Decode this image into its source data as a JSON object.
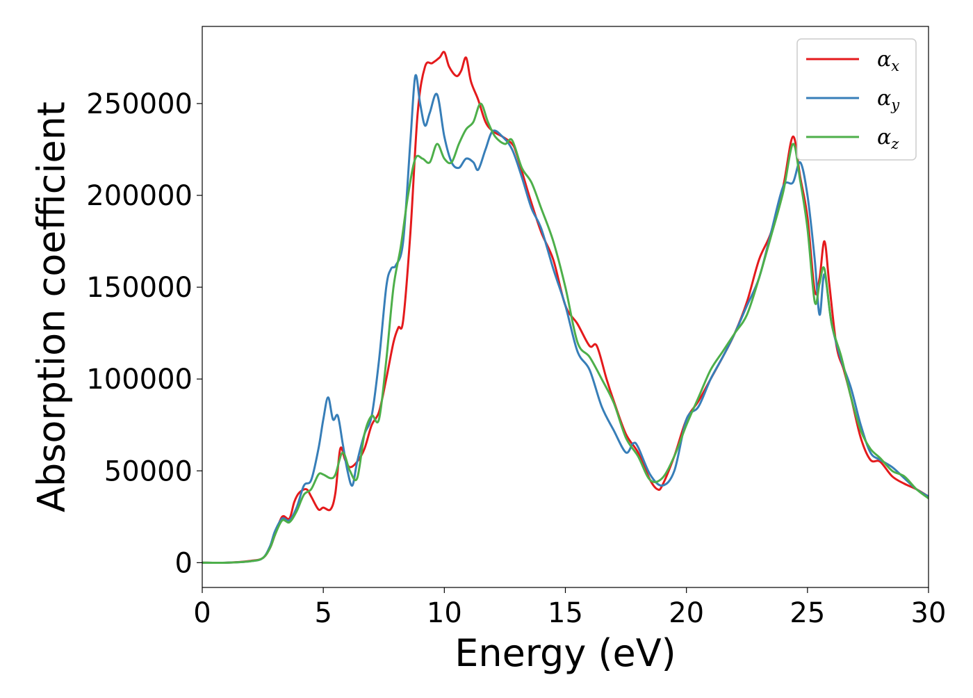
{
  "chart_data": {
    "type": "line",
    "title": "",
    "xlabel": "Energy (eV)",
    "ylabel": "Absorption coefficient",
    "xlim": [
      0,
      30
    ],
    "ylim": [
      -13500,
      292000
    ],
    "xticks": [
      0,
      5,
      10,
      15,
      20,
      25,
      30
    ],
    "yticks": [
      0,
      50000,
      100000,
      150000,
      200000,
      250000
    ],
    "grid": false,
    "legend_position": "top-right",
    "series": [
      {
        "name": "αx",
        "legend_base": "α",
        "legend_sub": "x",
        "color": "#e41a1c",
        "x": [
          0,
          1,
          2,
          2.5,
          2.8,
          3.0,
          3.3,
          3.6,
          3.8,
          4.0,
          4.3,
          4.5,
          4.8,
          5.0,
          5.3,
          5.5,
          5.7,
          5.9,
          6.1,
          6.4,
          6.7,
          7.0,
          7.3,
          7.6,
          7.9,
          8.1,
          8.3,
          8.6,
          8.9,
          9.2,
          9.5,
          9.8,
          10.0,
          10.2,
          10.5,
          10.7,
          10.9,
          11.1,
          11.4,
          11.7,
          12.0,
          12.4,
          12.8,
          13.0,
          13.5,
          14.0,
          14.5,
          15.0,
          15.5,
          16.0,
          16.3,
          16.7,
          17.0,
          17.5,
          18.0,
          18.5,
          18.8,
          19.0,
          19.5,
          20.0,
          20.5,
          21.0,
          21.5,
          22.0,
          22.5,
          23.0,
          23.5,
          24.0,
          24.4,
          24.7,
          25.0,
          25.3,
          25.5,
          25.7,
          25.9,
          26.2,
          26.5,
          26.8,
          27.2,
          27.6,
          28.0,
          28.5,
          29.0,
          29.5,
          30.0
        ],
        "y": [
          0,
          0,
          1000,
          2500,
          8000,
          15000,
          25000,
          24000,
          33000,
          38000,
          40000,
          36000,
          29000,
          30000,
          29000,
          38000,
          62000,
          56000,
          52000,
          55000,
          62000,
          75000,
          82000,
          100000,
          120000,
          128000,
          132000,
          180000,
          245000,
          270000,
          272000,
          275000,
          278000,
          270000,
          265000,
          268000,
          275000,
          262000,
          252000,
          240000,
          235000,
          232000,
          228000,
          222000,
          200000,
          180000,
          165000,
          140000,
          130000,
          118000,
          118000,
          100000,
          88000,
          70000,
          60000,
          45000,
          40000,
          42000,
          58000,
          78000,
          88000,
          100000,
          112000,
          125000,
          142000,
          165000,
          180000,
          205000,
          232000,
          210000,
          188000,
          148000,
          155000,
          175000,
          152000,
          118000,
          105000,
          90000,
          68000,
          56000,
          55000,
          47000,
          43000,
          40000,
          36000
        ]
      },
      {
        "name": "αy",
        "legend_base": "α",
        "legend_sub": "y",
        "color": "#377eb8",
        "x": [
          0,
          1,
          2,
          2.5,
          2.8,
          3.0,
          3.3,
          3.6,
          3.9,
          4.2,
          4.5,
          4.8,
          5.0,
          5.2,
          5.4,
          5.6,
          5.8,
          6.0,
          6.2,
          6.4,
          6.7,
          7.0,
          7.3,
          7.6,
          7.8,
          8.0,
          8.3,
          8.6,
          8.8,
          9.0,
          9.2,
          9.4,
          9.7,
          10.0,
          10.3,
          10.6,
          10.9,
          11.2,
          11.4,
          11.7,
          12.0,
          12.4,
          12.8,
          13.2,
          13.6,
          14.0,
          14.5,
          15.0,
          15.5,
          16.0,
          16.5,
          17.0,
          17.5,
          17.8,
          18.0,
          18.5,
          19.0,
          19.5,
          20.0,
          20.5,
          21.0,
          21.5,
          22.0,
          22.5,
          23.0,
          23.5,
          24.0,
          24.4,
          24.7,
          25.0,
          25.3,
          25.5,
          25.7,
          26.0,
          26.4,
          26.8,
          27.2,
          27.6,
          28.0,
          28.5,
          29.0,
          29.5,
          30.0
        ],
        "y": [
          0,
          0,
          800,
          2500,
          9000,
          17000,
          24000,
          23000,
          30000,
          42000,
          45000,
          62000,
          78000,
          90000,
          78000,
          80000,
          65000,
          50000,
          42000,
          55000,
          70000,
          80000,
          110000,
          150000,
          160000,
          162000,
          175000,
          230000,
          265000,
          250000,
          238000,
          245000,
          255000,
          232000,
          218000,
          215000,
          220000,
          218000,
          214000,
          225000,
          235000,
          232000,
          225000,
          210000,
          193000,
          182000,
          160000,
          140000,
          115000,
          105000,
          85000,
          72000,
          60000,
          65000,
          63000,
          48000,
          42000,
          50000,
          78000,
          85000,
          100000,
          112000,
          125000,
          140000,
          155000,
          180000,
          205000,
          207000,
          218000,
          200000,
          165000,
          135000,
          157000,
          130000,
          110000,
          95000,
          75000,
          60000,
          56000,
          52000,
          46000,
          40000,
          36000
        ]
      },
      {
        "name": "αz",
        "legend_base": "α",
        "legend_sub": "z",
        "color": "#4daf4a",
        "x": [
          0,
          1,
          2,
          2.5,
          2.8,
          3.0,
          3.3,
          3.6,
          3.9,
          4.2,
          4.5,
          4.8,
          5.0,
          5.3,
          5.5,
          5.8,
          6.1,
          6.4,
          6.7,
          7.0,
          7.3,
          7.6,
          7.9,
          8.2,
          8.5,
          8.8,
          9.1,
          9.4,
          9.7,
          10.0,
          10.3,
          10.6,
          10.9,
          11.2,
          11.5,
          11.8,
          12.1,
          12.5,
          12.8,
          13.2,
          13.6,
          14.0,
          14.5,
          15.0,
          15.5,
          16.0,
          16.5,
          17.0,
          17.5,
          18.0,
          18.5,
          19.0,
          19.5,
          20.0,
          20.5,
          21.0,
          21.5,
          22.0,
          22.5,
          23.0,
          23.5,
          24.0,
          24.4,
          24.7,
          25.0,
          25.3,
          25.5,
          25.7,
          26.0,
          26.4,
          26.8,
          27.2,
          27.6,
          28.0,
          28.5,
          29.0,
          29.5,
          30.0
        ],
        "y": [
          0,
          0,
          800,
          2500,
          8000,
          15000,
          23000,
          22000,
          28000,
          37000,
          40000,
          48000,
          48000,
          46000,
          48000,
          60000,
          50000,
          46000,
          70000,
          80000,
          78000,
          110000,
          150000,
          172000,
          200000,
          220000,
          220000,
          218000,
          228000,
          220000,
          218000,
          228000,
          236000,
          240000,
          250000,
          240000,
          232000,
          228000,
          230000,
          215000,
          207000,
          193000,
          175000,
          150000,
          120000,
          112000,
          100000,
          87000,
          68000,
          58000,
          45000,
          46000,
          58000,
          75000,
          90000,
          105000,
          115000,
          125000,
          135000,
          155000,
          178000,
          202000,
          228000,
          208000,
          182000,
          142000,
          152000,
          160000,
          130000,
          112000,
          90000,
          72000,
          62000,
          57000,
          50000,
          47000,
          40000,
          35000
        ]
      }
    ]
  }
}
